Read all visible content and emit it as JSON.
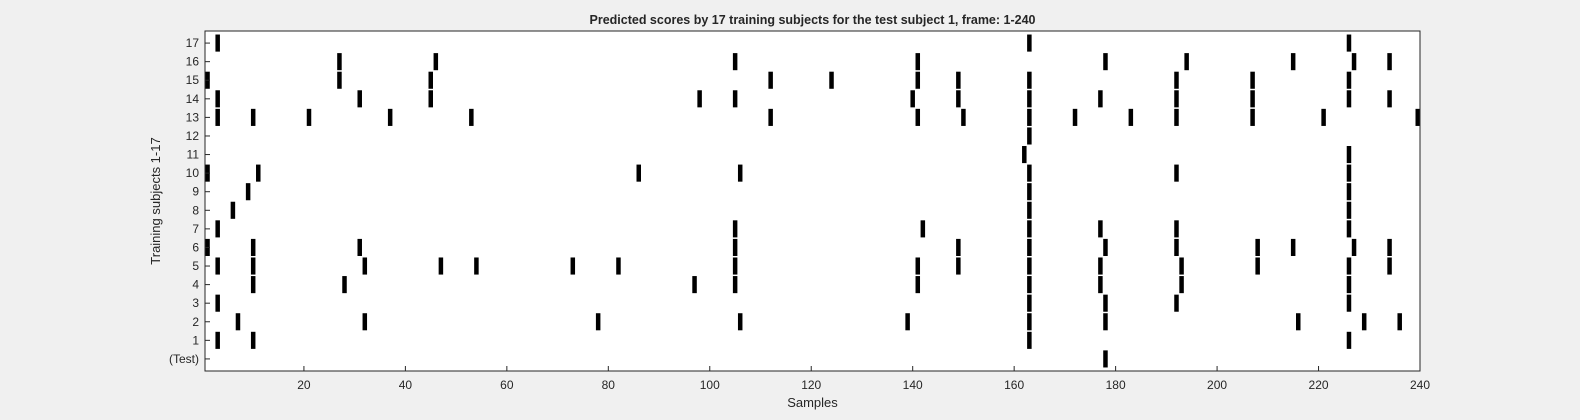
{
  "chart_data": {
    "type": "heatmap",
    "title": "Predicted scores by 17 training subjects for the test subject 1, frame: 1-240",
    "xlabel": "Samples",
    "ylabel": "Training subjects 1-17",
    "xlim": [
      0.5,
      240
    ],
    "x_ticks": [
      20,
      40,
      60,
      80,
      100,
      120,
      140,
      160,
      180,
      200,
      220,
      240
    ],
    "y_tick_labels": [
      "(Test)",
      "1",
      "2",
      "3",
      "4",
      "5",
      "6",
      "7",
      "8",
      "9",
      "10",
      "11",
      "12",
      "13",
      "14",
      "15",
      "16",
      "17"
    ],
    "colors": {
      "mark": "#000000",
      "background": "#ffffff",
      "figure": "#f0f0f0"
    },
    "rows": [
      {
        "label": "(Test)",
        "samples": [
          178
        ]
      },
      {
        "label": "1",
        "samples": [
          3,
          10,
          163,
          226
        ]
      },
      {
        "label": "2",
        "samples": [
          7,
          32,
          78,
          106,
          139,
          163,
          178,
          216,
          229,
          236
        ]
      },
      {
        "label": "3",
        "samples": [
          3,
          163,
          178,
          192,
          226
        ]
      },
      {
        "label": "4",
        "samples": [
          10,
          28,
          97,
          105,
          141,
          163,
          177,
          193,
          226
        ]
      },
      {
        "label": "5",
        "samples": [
          3,
          10,
          32,
          47,
          54,
          73,
          82,
          105,
          141,
          149,
          163,
          177,
          193,
          208,
          226,
          234
        ]
      },
      {
        "label": "6",
        "samples": [
          1,
          10,
          31,
          105,
          149,
          163,
          178,
          192,
          208,
          215,
          227,
          234
        ]
      },
      {
        "label": "7",
        "samples": [
          3,
          105,
          142,
          163,
          177,
          192,
          226
        ]
      },
      {
        "label": "8",
        "samples": [
          6,
          163,
          226
        ]
      },
      {
        "label": "9",
        "samples": [
          9,
          163,
          226
        ]
      },
      {
        "label": "10",
        "samples": [
          1,
          11,
          86,
          106,
          163,
          192,
          226
        ]
      },
      {
        "label": "11",
        "samples": [
          162,
          226
        ]
      },
      {
        "label": "12",
        "samples": [
          163
        ]
      },
      {
        "label": "13",
        "samples": [
          3,
          10,
          21,
          37,
          53,
          112,
          141,
          150,
          163,
          172,
          183,
          192,
          207,
          221,
          240
        ]
      },
      {
        "label": "14",
        "samples": [
          3,
          31,
          45,
          98,
          105,
          140,
          149,
          163,
          177,
          192,
          207,
          226,
          234
        ]
      },
      {
        "label": "15",
        "samples": [
          1,
          27,
          45,
          112,
          124,
          141,
          149,
          163,
          192,
          207,
          226
        ]
      },
      {
        "label": "16",
        "samples": [
          27,
          46,
          105,
          141,
          178,
          194,
          215,
          227,
          234
        ]
      },
      {
        "label": "17",
        "samples": [
          3,
          163,
          226
        ]
      }
    ]
  }
}
